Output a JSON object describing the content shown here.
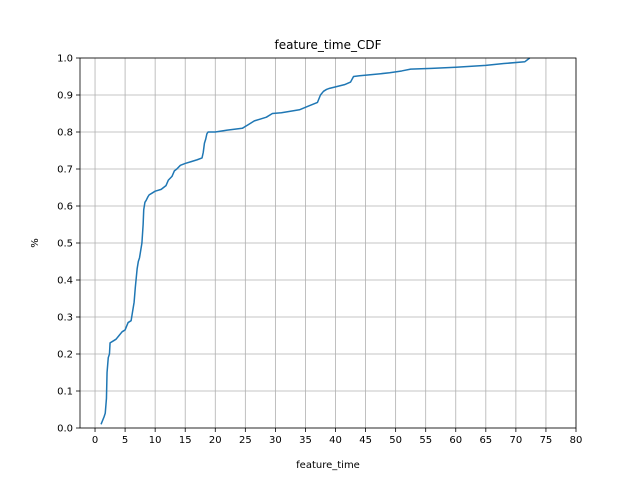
{
  "chart_data": {
    "type": "line",
    "title": "feature_time_CDF",
    "xlabel": "feature_time",
    "ylabel": "%",
    "xlim": [
      -2.5,
      80
    ],
    "ylim": [
      0,
      1.0
    ],
    "xticks": [
      0,
      5,
      10,
      15,
      20,
      25,
      30,
      35,
      40,
      45,
      50,
      55,
      60,
      65,
      70,
      75,
      80
    ],
    "yticks": [
      0.0,
      0.1,
      0.2,
      0.3,
      0.4,
      0.5,
      0.6,
      0.7,
      0.8,
      0.9,
      1.0
    ],
    "ytick_labels": [
      "0.0",
      "0.1",
      "0.2",
      "0.3",
      "0.4",
      "0.5",
      "0.6",
      "0.7",
      "0.8",
      "0.9",
      "1.0"
    ],
    "grid": true,
    "series": [
      {
        "color": "#1f77b4",
        "x": [
          1.0,
          1.5,
          1.7,
          1.9,
          2.0,
          2.1,
          2.2,
          2.4,
          2.5,
          3.0,
          3.5,
          4.0,
          4.5,
          5.0,
          5.5,
          6.0,
          6.2,
          6.5,
          6.7,
          7.0,
          7.2,
          7.4,
          7.6,
          7.8,
          8.0,
          8.1,
          8.2,
          8.3,
          8.5,
          8.8,
          9.0,
          9.5,
          10.0,
          11.0,
          11.8,
          12.2,
          12.8,
          13.2,
          13.6,
          14.2,
          15.0,
          16.0,
          17.0,
          17.8,
          18.0,
          18.2,
          18.4,
          18.6,
          18.8,
          20.0,
          22.0,
          24.5,
          25.5,
          26.5,
          27.5,
          28.5,
          29.5,
          31.0,
          34.0,
          35.5,
          37.0,
          37.5,
          38.0,
          38.5,
          39.0,
          40.0,
          41.5,
          42.5,
          43.0,
          44.0,
          46.0,
          49.0,
          51.0,
          52.5,
          56.0,
          60.0,
          65.0,
          68.0,
          71.5,
          72.3
        ],
        "y": [
          0.01,
          0.03,
          0.04,
          0.08,
          0.15,
          0.17,
          0.19,
          0.2,
          0.23,
          0.235,
          0.24,
          0.25,
          0.26,
          0.265,
          0.285,
          0.29,
          0.31,
          0.34,
          0.38,
          0.43,
          0.45,
          0.46,
          0.48,
          0.5,
          0.55,
          0.59,
          0.6,
          0.61,
          0.615,
          0.625,
          0.63,
          0.635,
          0.64,
          0.645,
          0.655,
          0.67,
          0.68,
          0.695,
          0.7,
          0.71,
          0.715,
          0.72,
          0.725,
          0.73,
          0.745,
          0.77,
          0.78,
          0.795,
          0.8,
          0.8,
          0.805,
          0.81,
          0.82,
          0.83,
          0.835,
          0.84,
          0.85,
          0.852,
          0.86,
          0.87,
          0.88,
          0.9,
          0.91,
          0.915,
          0.918,
          0.922,
          0.928,
          0.935,
          0.95,
          0.952,
          0.955,
          0.96,
          0.965,
          0.97,
          0.972,
          0.975,
          0.98,
          0.985,
          0.99,
          1.0
        ]
      }
    ]
  }
}
